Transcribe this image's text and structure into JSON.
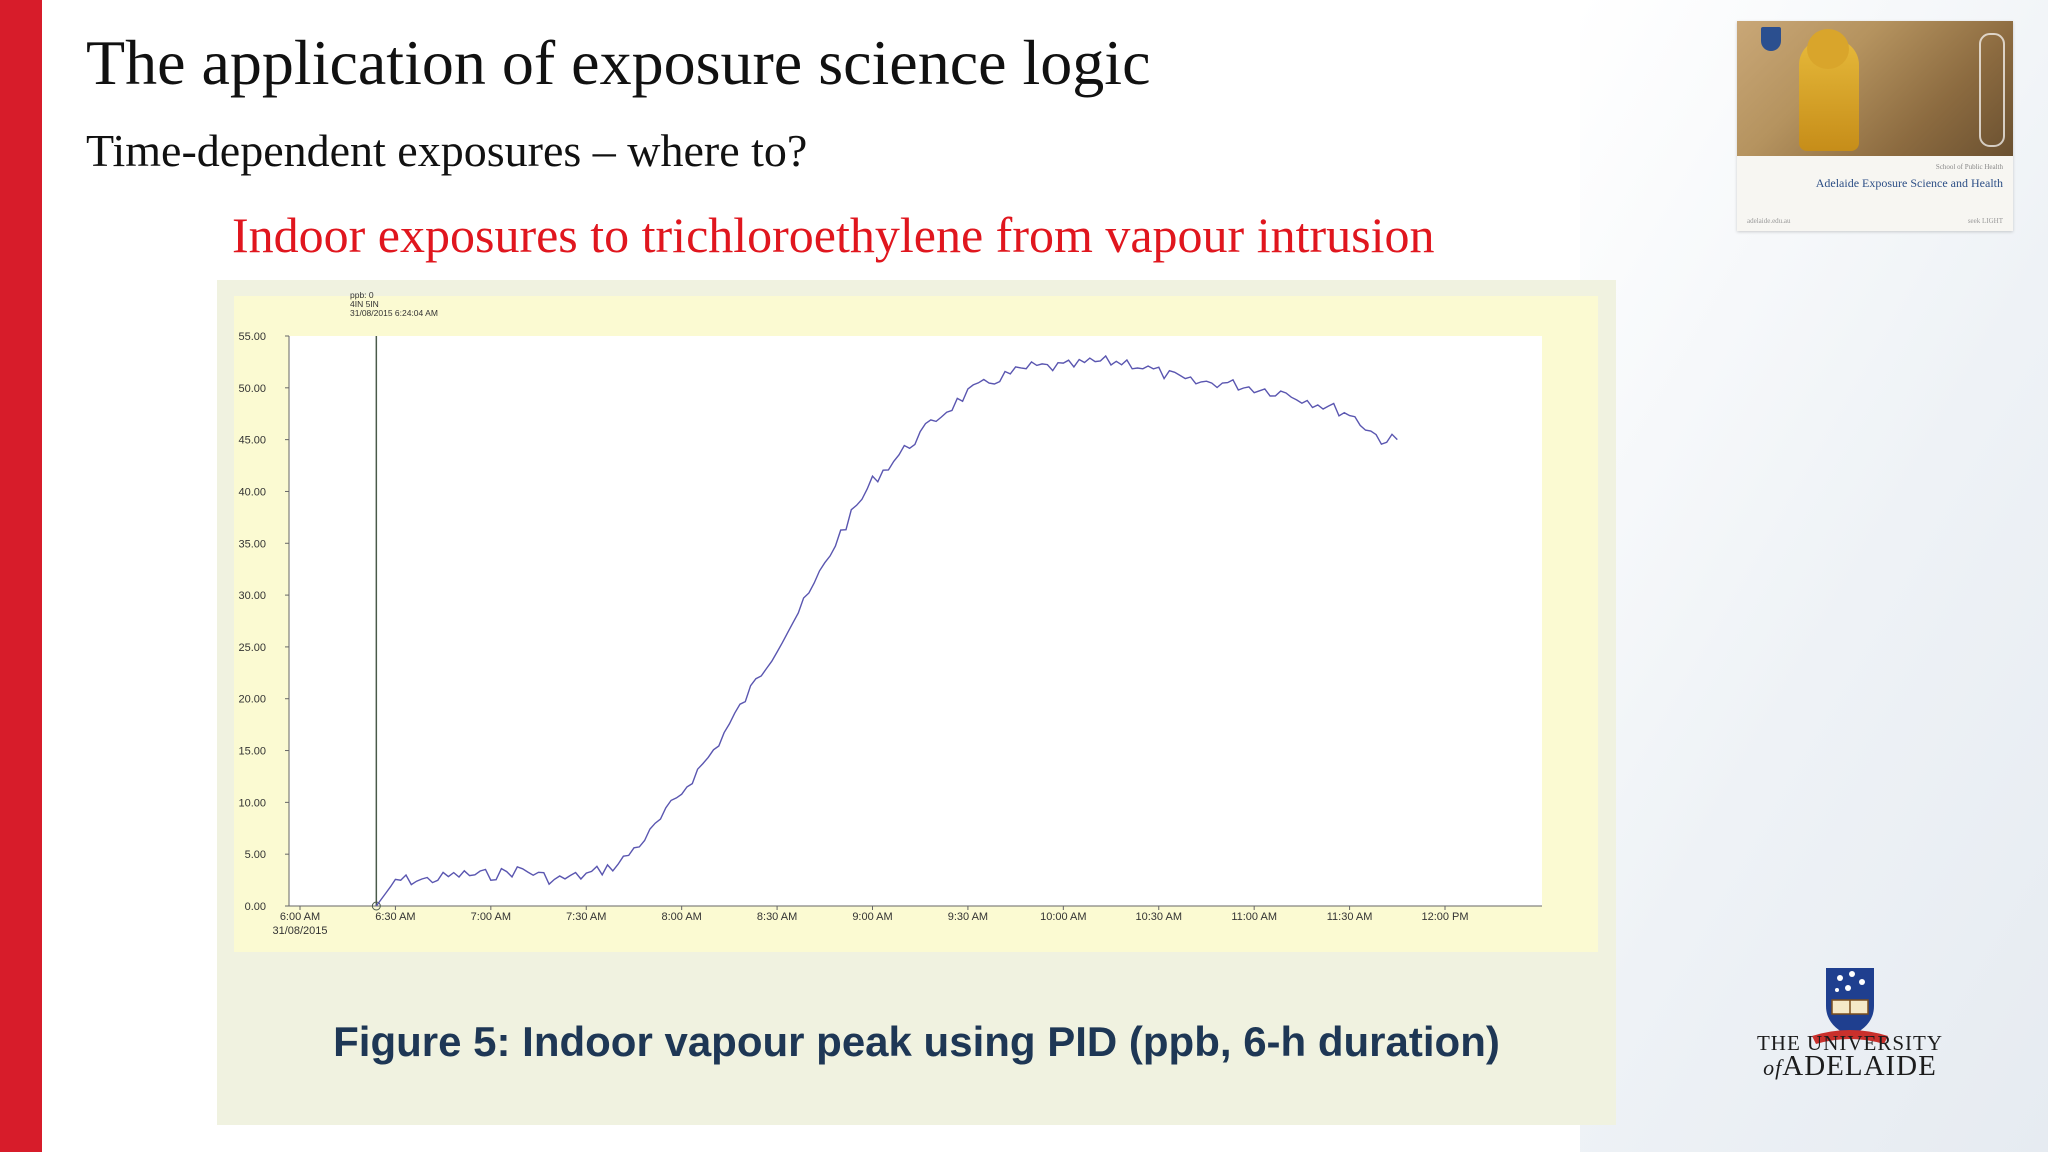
{
  "slide": {
    "title": "The application of exposure science logic",
    "subtitle": "Time-dependent exposures – where to?",
    "heading": "Indoor exposures to trichloroethylene from vapour intrusion",
    "figure_caption": "Figure 5: Indoor vapour peak using PID (ppb, 6-h duration)",
    "accent_color": "#d71c2a",
    "heading_color": "#e0161e"
  },
  "thumbnail": {
    "text": "Adelaide Exposure Science and Health",
    "small_text": "School of Public Health",
    "footer_left": "adelaide.edu.au",
    "footer_right": "seek LIGHT"
  },
  "logo": {
    "line1": "THE UNIVERSITY",
    "line2_prefix": "of",
    "line2": "ADELAIDE"
  },
  "chart_data": {
    "type": "line",
    "cursor_label": [
      "ppb: 0",
      "4IN 5IN",
      "31/08/2015 6:24:04 AM"
    ],
    "x_tick_labels": [
      "6:00 AM",
      "6:30 AM",
      "7:00 AM",
      "7:30 AM",
      "8:00 AM",
      "8:30 AM",
      "9:00 AM",
      "9:30 AM",
      "10:00 AM",
      "10:30 AM",
      "11:00 AM",
      "11:30 AM",
      "12:00 PM"
    ],
    "x_first_date": "31/08/2015",
    "y_tick_labels": [
      "0.00",
      "5.00",
      "10.00",
      "15.00",
      "20.00",
      "25.00",
      "30.00",
      "35.00",
      "40.00",
      "45.00",
      "50.00",
      "55.00"
    ],
    "ylim": [
      0,
      55
    ],
    "x_unit": "time of day",
    "line_color": "#5a56b0",
    "series": [
      {
        "x": [
          "6:24 AM",
          "6:30 AM",
          "6:40 AM",
          "6:50 AM",
          "7:00 AM",
          "7:10 AM",
          "7:20 AM",
          "7:30 AM",
          "7:40 AM",
          "7:50 AM",
          "8:00 AM",
          "8:10 AM",
          "8:20 AM",
          "8:30 AM",
          "8:40 AM",
          "8:50 AM",
          "9:00 AM",
          "9:10 AM",
          "9:20 AM",
          "9:30 AM",
          "9:40 AM",
          "9:50 AM",
          "10:00 AM",
          "10:10 AM",
          "10:20 AM",
          "10:30 AM",
          "10:40 AM",
          "10:50 AM",
          "11:00 AM",
          "11:10 AM",
          "11:20 AM",
          "11:30 AM",
          "11:40 AM",
          "11:45 AM"
        ],
        "values": [
          0,
          2.5,
          2.5,
          3,
          3,
          3.5,
          2.5,
          3,
          4,
          7,
          11,
          15,
          20,
          25,
          30,
          36,
          41,
          44,
          47,
          49.5,
          51,
          52,
          52,
          52.5,
          52.5,
          51.5,
          50.5,
          50.5,
          50,
          49.5,
          48.5,
          47.5,
          45,
          45
        ]
      }
    ]
  }
}
